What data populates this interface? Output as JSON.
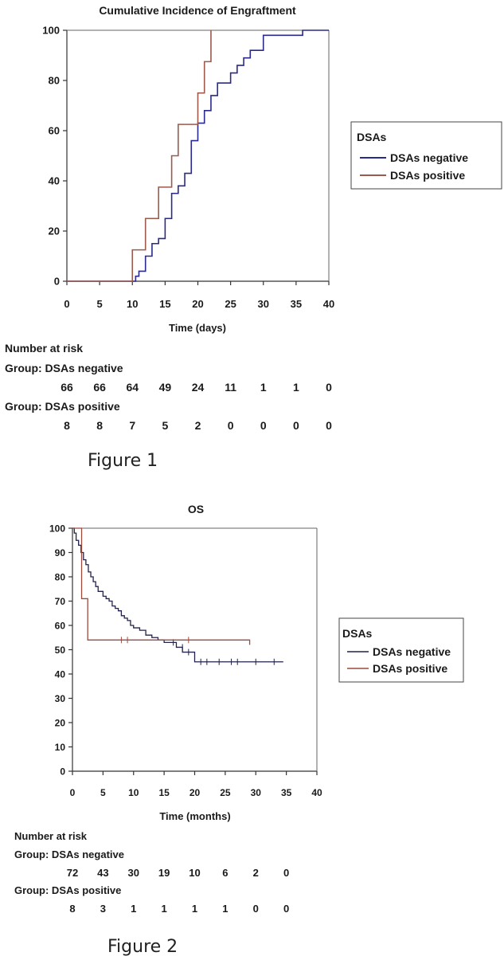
{
  "chart_data": [
    {
      "type": "line",
      "title": "Cumulative Incidence of Engraftment",
      "xlabel": "Time (days)",
      "ylabel": "",
      "xlim": [
        0,
        40
      ],
      "ylim": [
        0,
        100
      ],
      "x_ticks": [
        "0",
        "5",
        "10",
        "15",
        "20",
        "25",
        "30",
        "35",
        "40"
      ],
      "y_ticks": [
        "0",
        "20",
        "40",
        "60",
        "80",
        "100"
      ],
      "legend": {
        "title": "DSAs",
        "placement": "right"
      },
      "series": [
        {
          "name": "DSAs negative",
          "color": "#2a2a8a",
          "step_points": [
            [
              0,
              0
            ],
            [
              10,
              0
            ],
            [
              10.5,
              2
            ],
            [
              11,
              4
            ],
            [
              12,
              10
            ],
            [
              13,
              15
            ],
            [
              14,
              17
            ],
            [
              15,
              25
            ],
            [
              16,
              35
            ],
            [
              17,
              38
            ],
            [
              18,
              43
            ],
            [
              19,
              56
            ],
            [
              20,
              63
            ],
            [
              21,
              68
            ],
            [
              22,
              74
            ],
            [
              23,
              79
            ],
            [
              25,
              83
            ],
            [
              26,
              86
            ],
            [
              27,
              89
            ],
            [
              28,
              92
            ],
            [
              30,
              98
            ],
            [
              35,
              98
            ],
            [
              36,
              100
            ],
            [
              40,
              100
            ]
          ]
        },
        {
          "name": "DSAs positive",
          "color": "#9c5a4c",
          "step_points": [
            [
              0,
              0
            ],
            [
              10,
              0
            ],
            [
              10,
              12.5
            ],
            [
              12,
              25
            ],
            [
              14,
              37.5
            ],
            [
              16,
              50
            ],
            [
              17,
              62.5
            ],
            [
              20,
              75
            ],
            [
              21,
              87.5
            ],
            [
              22,
              100
            ]
          ]
        }
      ],
      "number_at_risk": {
        "heading": "Number at risk",
        "groups": [
          {
            "label": "Group: DSAs negative",
            "values": [
              "66",
              "66",
              "64",
              "49",
              "24",
              "11",
              "1",
              "1",
              "0"
            ]
          },
          {
            "label": "Group: DSAs positive",
            "values": [
              "8",
              "8",
              "7",
              "5",
              "2",
              "0",
              "0",
              "0",
              "0"
            ]
          }
        ]
      },
      "caption": "Figure 1"
    },
    {
      "type": "line",
      "title": "OS",
      "xlabel": "Time (months)",
      "ylabel": "",
      "xlim": [
        0,
        40
      ],
      "ylim": [
        0,
        100
      ],
      "x_ticks": [
        "0",
        "5",
        "10",
        "15",
        "20",
        "25",
        "30",
        "35",
        "40"
      ],
      "y_ticks": [
        "0",
        "10",
        "20",
        "30",
        "40",
        "50",
        "60",
        "70",
        "80",
        "90",
        "100"
      ],
      "legend": {
        "title": "DSAs",
        "placement": "right"
      },
      "series": [
        {
          "name": "DSAs negative",
          "color": "#22224a",
          "step_points": [
            [
              0,
              100
            ],
            [
              0.3,
              98
            ],
            [
              0.6,
              95
            ],
            [
              1,
              93
            ],
            [
              1.4,
              90
            ],
            [
              1.8,
              87
            ],
            [
              2.2,
              85
            ],
            [
              2.6,
              82
            ],
            [
              3,
              80
            ],
            [
              3.4,
              78
            ],
            [
              3.8,
              76
            ],
            [
              4.2,
              74
            ],
            [
              5,
              72
            ],
            [
              5.5,
              71
            ],
            [
              6,
              70
            ],
            [
              6.5,
              68
            ],
            [
              7,
              67
            ],
            [
              7.5,
              66
            ],
            [
              8,
              64
            ],
            [
              8.5,
              63
            ],
            [
              9,
              62
            ],
            [
              9.5,
              60
            ],
            [
              10,
              59
            ],
            [
              11,
              58
            ],
            [
              12,
              56
            ],
            [
              13,
              55
            ],
            [
              14,
              54
            ],
            [
              15,
              53
            ],
            [
              16,
              53
            ],
            [
              17,
              51
            ],
            [
              18,
              49
            ],
            [
              20,
              45
            ],
            [
              34.5,
              45
            ]
          ],
          "censored": [
            [
              16.5,
              53
            ],
            [
              18,
              51
            ],
            [
              19,
              49
            ],
            [
              21,
              45
            ],
            [
              22,
              45
            ],
            [
              24,
              45
            ],
            [
              26,
              45
            ],
            [
              27,
              45
            ],
            [
              30,
              45
            ],
            [
              33,
              45
            ]
          ]
        },
        {
          "name": "DSAs positive",
          "color": "#9c4a3c",
          "step_points": [
            [
              0,
              100
            ],
            [
              1.5,
              100
            ],
            [
              1.5,
              71
            ],
            [
              2.5,
              71
            ],
            [
              2.5,
              54
            ],
            [
              29,
              54
            ],
            [
              29,
              52
            ]
          ],
          "censored": [
            [
              8,
              54
            ],
            [
              9,
              54
            ],
            [
              19,
              54
            ]
          ]
        }
      ],
      "number_at_risk": {
        "heading": "Number at risk",
        "groups": [
          {
            "label": "Group: DSAs negative",
            "values": [
              "72",
              "43",
              "30",
              "19",
              "10",
              "6",
              "2",
              "0"
            ]
          },
          {
            "label": "Group: DSAs positive",
            "values": [
              "8",
              "3",
              "1",
              "1",
              "1",
              "1",
              "0",
              "0"
            ]
          }
        ]
      },
      "caption": "Figure 2"
    }
  ]
}
